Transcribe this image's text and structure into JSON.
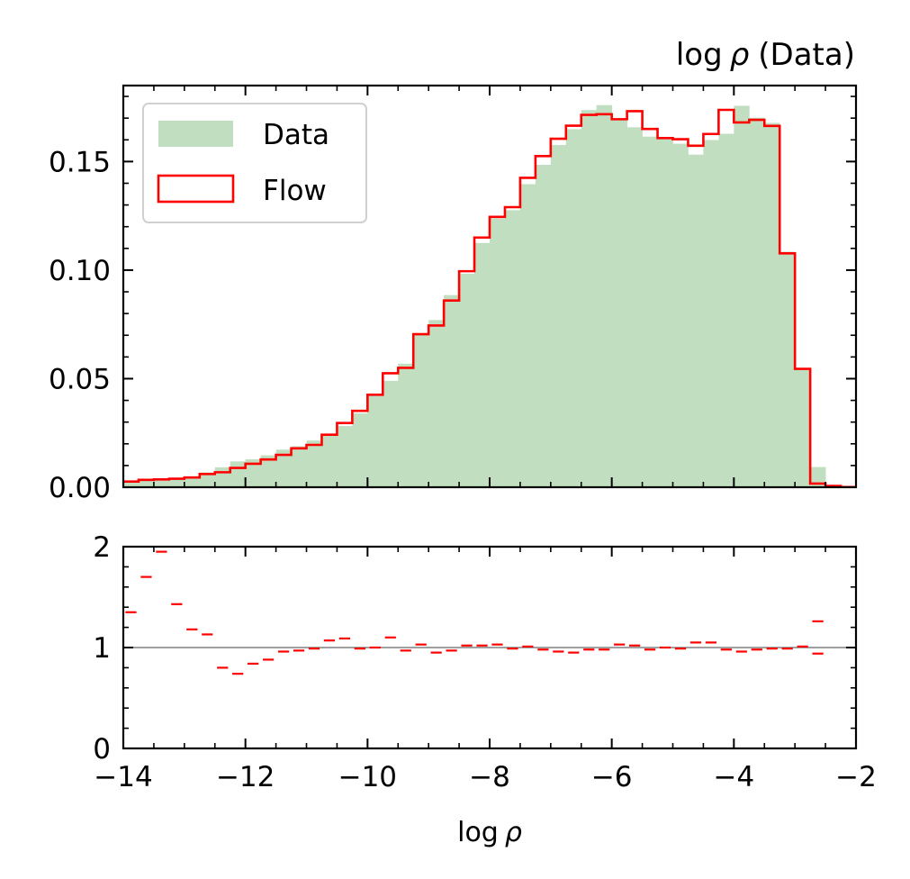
{
  "chart_data": [
    {
      "type": "bar",
      "panel": "main",
      "title_prefix": "log",
      "title_symbol": "ρ",
      "title_suffix": "(Data)",
      "xlabel": "",
      "ylabel": "",
      "xlim": [
        -14,
        -2
      ],
      "ylim": [
        0,
        0.185
      ],
      "yticks": [
        0.0,
        0.05,
        0.1,
        0.15
      ],
      "ytick_labels": [
        "0.00",
        "0.05",
        "0.10",
        "0.15"
      ],
      "bin_edges": [
        -14.0,
        -13.75,
        -13.5,
        -13.25,
        -13.0,
        -12.75,
        -12.5,
        -12.25,
        -12.0,
        -11.75,
        -11.5,
        -11.25,
        -11.0,
        -10.75,
        -10.5,
        -10.25,
        -10.0,
        -9.75,
        -9.5,
        -9.25,
        -9.0,
        -8.75,
        -8.5,
        -8.25,
        -8.0,
        -7.75,
        -7.5,
        -7.25,
        -7.0,
        -6.75,
        -6.5,
        -6.25,
        -6.0,
        -5.75,
        -5.5,
        -5.25,
        -5.0,
        -4.75,
        -4.5,
        -4.25,
        -4.0,
        -3.75,
        -3.5,
        -3.25,
        -3.0,
        -2.75,
        -2.5,
        -2.25,
        -2.0
      ],
      "legend_position": "top-left",
      "grid": false,
      "series": [
        {
          "name": "Data",
          "style": "filled",
          "color": "#c1dfc0",
          "values": [
            0.0024,
            0.0029,
            0.0033,
            0.0036,
            0.0047,
            0.0068,
            0.0092,
            0.0119,
            0.0129,
            0.0147,
            0.0173,
            0.0189,
            0.0215,
            0.0244,
            0.0282,
            0.034,
            0.0426,
            0.049,
            0.0569,
            0.0705,
            0.077,
            0.0885,
            0.0983,
            0.1125,
            0.1238,
            0.1276,
            0.1396,
            0.1485,
            0.1576,
            0.1649,
            0.1737,
            0.176,
            0.1695,
            0.1658,
            0.1615,
            0.1605,
            0.1582,
            0.1532,
            0.1599,
            0.1628,
            0.1757,
            0.1702,
            0.1678,
            0.1085,
            0.0541,
            0.0093,
            0.001,
            0.0003
          ]
        },
        {
          "name": "Flow",
          "style": "step",
          "color": "#ff0000",
          "values": [
            0.0026,
            0.0034,
            0.0036,
            0.0039,
            0.0045,
            0.0061,
            0.0069,
            0.0089,
            0.0108,
            0.0128,
            0.0149,
            0.0179,
            0.0195,
            0.0242,
            0.0296,
            0.0352,
            0.0426,
            0.0525,
            0.055,
            0.0705,
            0.0745,
            0.086,
            0.0995,
            0.115,
            0.1245,
            0.129,
            0.1425,
            0.1525,
            0.1605,
            0.1665,
            0.1715,
            0.1718,
            0.1695,
            0.1732,
            0.165,
            0.1608,
            0.1603,
            0.1573,
            0.1627,
            0.1738,
            0.168,
            0.1692,
            0.1664,
            0.1077,
            0.0545,
            0.0017,
            0.0006,
            0.0001
          ]
        }
      ]
    },
    {
      "type": "scatter",
      "panel": "ratio",
      "marker": "horizontal-bar",
      "xlabel_prefix": "log",
      "xlabel_symbol": "ρ",
      "xlim": [
        -14,
        -2
      ],
      "ylim": [
        0,
        2
      ],
      "yticks": [
        0,
        1,
        2
      ],
      "ytick_labels": [
        "0",
        "1",
        "2"
      ],
      "xticks": [
        -14,
        -12,
        -10,
        -8,
        -6,
        -4,
        -2
      ],
      "xtick_labels": [
        "−14",
        "−12",
        "−10",
        "−8",
        "−6",
        "−4",
        "−2"
      ],
      "reference_line": 1,
      "reference_color": "#808080",
      "series": [
        {
          "color": "#ff0000",
          "x": [
            -13.875,
            -13.625,
            -13.375,
            -13.125,
            -12.875,
            -12.625,
            -12.375,
            -12.125,
            -11.875,
            -11.625,
            -11.375,
            -11.125,
            -10.875,
            -10.625,
            -10.375,
            -10.125,
            -9.875,
            -9.625,
            -9.375,
            -9.125,
            -8.875,
            -8.625,
            -8.375,
            -8.125,
            -7.875,
            -7.625,
            -7.375,
            -7.125,
            -6.875,
            -6.625,
            -6.375,
            -6.125,
            -5.875,
            -5.625,
            -5.375,
            -5.125,
            -4.875,
            -4.625,
            -4.375,
            -4.125,
            -3.875,
            -3.625,
            -3.375,
            -3.125,
            -2.875,
            -2.625
          ],
          "y": [
            1.35,
            1.7,
            1.95,
            1.43,
            1.18,
            1.13,
            0.8,
            0.74,
            0.84,
            0.88,
            0.96,
            0.97,
            0.99,
            1.07,
            1.09,
            0.99,
            1.0,
            1.1,
            0.97,
            1.03,
            0.95,
            0.97,
            1.02,
            1.02,
            1.03,
            0.99,
            1.01,
            0.98,
            0.96,
            0.95,
            0.98,
            0.98,
            1.03,
            1.02,
            0.98,
            1.0,
            0.99,
            1.05,
            1.05,
            0.98,
            0.96,
            0.98,
            0.99,
            0.99,
            1.01,
            0.94
          ]
        }
      ],
      "extra_point": {
        "x": -2.625,
        "y": 1.26
      }
    }
  ]
}
